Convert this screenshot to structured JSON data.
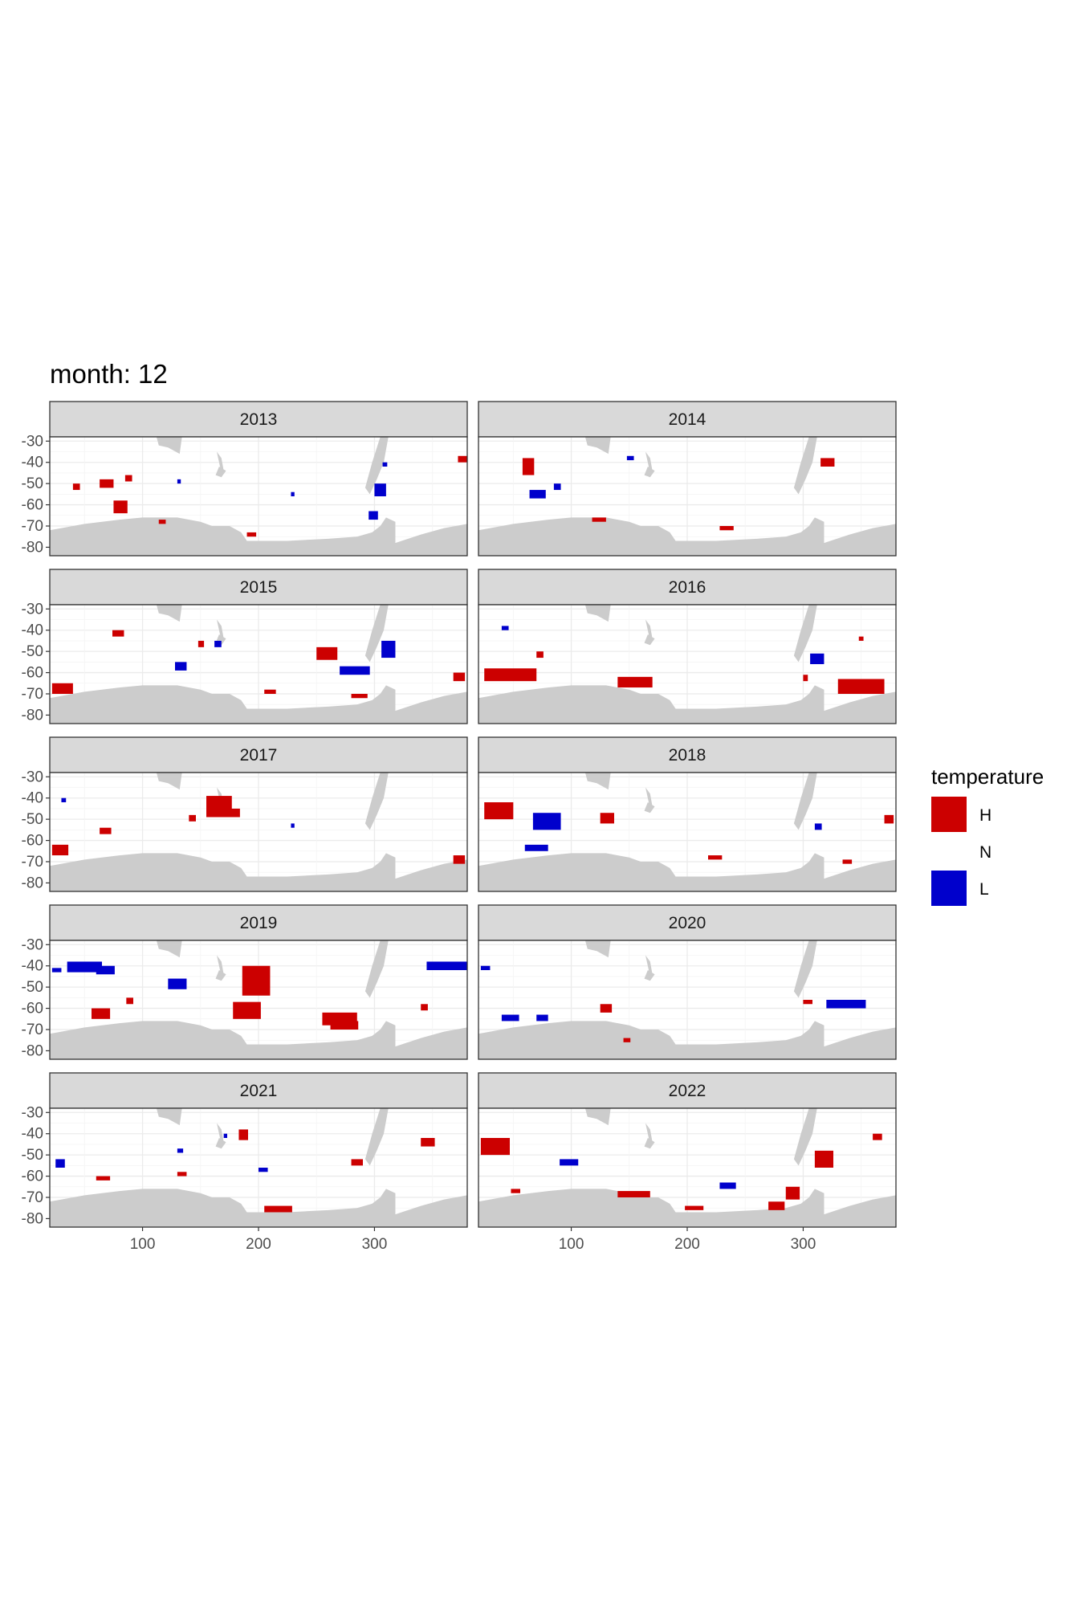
{
  "chart_data": {
    "type": "heatmap",
    "title": "month: 12",
    "xlabel": "",
    "ylabel": "",
    "x_ticks": [
      100,
      200,
      300
    ],
    "y_ticks": [
      -30,
      -40,
      -50,
      -60,
      -70,
      -80
    ],
    "xlim": [
      20,
      380
    ],
    "ylim": [
      -84,
      -28
    ],
    "grid": true,
    "colors": {
      "H": "#cc0000",
      "N": "#ffffff",
      "L": "#0000cc",
      "land": "#cccccc"
    },
    "legend": {
      "title": "temperature",
      "position": "right",
      "entries": [
        {
          "key": "H",
          "label": "H",
          "color": "#cc0000"
        },
        {
          "key": "N",
          "label": "N",
          "color": "#ffffff"
        },
        {
          "key": "L",
          "label": "L",
          "color": "#0000cc"
        }
      ]
    },
    "land": [
      [
        [
          20,
          -72
        ],
        [
          50,
          -69
        ],
        [
          80,
          -67
        ],
        [
          100,
          -66
        ],
        [
          130,
          -66
        ],
        [
          150,
          -68
        ],
        [
          160,
          -70
        ],
        [
          175,
          -70
        ],
        [
          185,
          -73
        ],
        [
          190,
          -77
        ],
        [
          225,
          -77
        ],
        [
          260,
          -76
        ],
        [
          285,
          -75
        ],
        [
          298,
          -73
        ],
        [
          305,
          -70
        ],
        [
          310,
          -66
        ],
        [
          318,
          -68
        ],
        [
          318,
          -78
        ],
        [
          340,
          -74
        ],
        [
          360,
          -71
        ],
        [
          380,
          -69
        ],
        [
          380,
          -84
        ],
        [
          20,
          -84
        ]
      ],
      [
        [
          112,
          -28
        ],
        [
          134,
          -28
        ],
        [
          132,
          -36
        ],
        [
          122,
          -33
        ],
        [
          114,
          -32
        ]
      ],
      [
        [
          164,
          -35
        ],
        [
          166,
          -40
        ],
        [
          168,
          -45
        ],
        [
          170,
          -44
        ],
        [
          168,
          -38
        ]
      ],
      [
        [
          172,
          -44
        ],
        [
          168,
          -47
        ],
        [
          163,
          -46
        ],
        [
          166,
          -42
        ]
      ],
      [
        [
          305,
          -28
        ],
        [
          312,
          -28
        ],
        [
          308,
          -40
        ],
        [
          302,
          -48
        ],
        [
          296,
          -55
        ],
        [
          292,
          -52
        ],
        [
          298,
          -40
        ]
      ]
    ],
    "panels": [
      {
        "label": "2013",
        "H": [
          [
            40,
            -50,
            6,
            3
          ],
          [
            63,
            -48,
            12,
            4
          ],
          [
            75,
            -58,
            12,
            6
          ],
          [
            85,
            -46,
            6,
            3
          ],
          [
            372,
            -37,
            8,
            3
          ],
          [
            114,
            -67,
            6,
            2
          ],
          [
            190,
            -73,
            8,
            2
          ]
        ],
        "L": [
          [
            300,
            -50,
            10,
            6
          ],
          [
            295,
            -63,
            8,
            4
          ],
          [
            307,
            -40,
            4,
            2
          ],
          [
            228,
            -54,
            3,
            2
          ],
          [
            130,
            -48,
            3,
            2
          ]
        ]
      },
      {
        "label": "2014",
        "H": [
          [
            58,
            -38,
            10,
            8
          ],
          [
            315,
            -38,
            12,
            4
          ],
          [
            118,
            -66,
            12,
            2
          ],
          [
            228,
            -70,
            12,
            2
          ]
        ],
        "L": [
          [
            64,
            -53,
            14,
            4
          ],
          [
            85,
            -50,
            6,
            3
          ],
          [
            148,
            -37,
            6,
            2
          ]
        ]
      },
      {
        "label": "2015",
        "H": [
          [
            250,
            -48,
            18,
            6
          ],
          [
            22,
            -65,
            18,
            5
          ],
          [
            74,
            -40,
            10,
            3
          ],
          [
            148,
            -45,
            5,
            3
          ],
          [
            368,
            -60,
            10,
            4
          ],
          [
            205,
            -68,
            10,
            2
          ],
          [
            280,
            -70,
            14,
            2
          ]
        ],
        "L": [
          [
            270,
            -57,
            26,
            4
          ],
          [
            306,
            -45,
            12,
            8
          ],
          [
            128,
            -55,
            10,
            4
          ],
          [
            162,
            -45,
            6,
            3
          ]
        ]
      },
      {
        "label": "2016",
        "H": [
          [
            25,
            -58,
            45,
            6
          ],
          [
            140,
            -62,
            30,
            5
          ],
          [
            330,
            -63,
            40,
            7
          ],
          [
            70,
            -50,
            6,
            3
          ],
          [
            348,
            -43,
            4,
            2
          ],
          [
            300,
            -61,
            4,
            3
          ]
        ],
        "L": [
          [
            306,
            -51,
            12,
            5
          ],
          [
            40,
            -38,
            6,
            2
          ]
        ]
      },
      {
        "label": "2017",
        "H": [
          [
            155,
            -39,
            22,
            10
          ],
          [
            172,
            -45,
            12,
            4
          ],
          [
            22,
            -62,
            14,
            5
          ],
          [
            368,
            -67,
            10,
            4
          ],
          [
            63,
            -54,
            10,
            3
          ],
          [
            140,
            -48,
            6,
            3
          ]
        ],
        "L": [
          [
            30,
            -40,
            4,
            2
          ],
          [
            228,
            -52,
            3,
            2
          ]
        ]
      },
      {
        "label": "2018",
        "H": [
          [
            25,
            -42,
            25,
            8
          ],
          [
            125,
            -47,
            12,
            5
          ],
          [
            218,
            -67,
            12,
            2
          ],
          [
            334,
            -69,
            8,
            2
          ],
          [
            370,
            -48,
            8,
            4
          ]
        ],
        "L": [
          [
            67,
            -47,
            24,
            8
          ],
          [
            60,
            -62,
            20,
            3
          ],
          [
            310,
            -52,
            6,
            3
          ]
        ]
      },
      {
        "label": "2019",
        "H": [
          [
            186,
            -40,
            24,
            14
          ],
          [
            178,
            -57,
            24,
            8
          ],
          [
            255,
            -62,
            30,
            6
          ],
          [
            262,
            -66,
            24,
            4
          ],
          [
            56,
            -60,
            16,
            5
          ],
          [
            86,
            -55,
            6,
            3
          ],
          [
            340,
            -58,
            6,
            3
          ]
        ],
        "L": [
          [
            35,
            -38,
            30,
            5
          ],
          [
            60,
            -40,
            16,
            4
          ],
          [
            122,
            -46,
            16,
            5
          ],
          [
            345,
            -38,
            35,
            4
          ],
          [
            22,
            -41,
            8,
            2
          ]
        ]
      },
      {
        "label": "2020",
        "H": [
          [
            125,
            -58,
            10,
            4
          ],
          [
            145,
            -74,
            6,
            2
          ],
          [
            300,
            -56,
            8,
            2
          ]
        ],
        "L": [
          [
            320,
            -56,
            34,
            4
          ],
          [
            40,
            -63,
            15,
            3
          ],
          [
            70,
            -63,
            10,
            3
          ],
          [
            22,
            -40,
            8,
            2
          ]
        ]
      },
      {
        "label": "2021",
        "H": [
          [
            205,
            -74,
            24,
            3
          ],
          [
            183,
            -38,
            8,
            5
          ],
          [
            340,
            -42,
            12,
            4
          ],
          [
            60,
            -60,
            12,
            2
          ],
          [
            130,
            -58,
            8,
            2
          ],
          [
            280,
            -52,
            10,
            3
          ]
        ],
        "L": [
          [
            25,
            -52,
            8,
            4
          ],
          [
            130,
            -47,
            5,
            2
          ],
          [
            200,
            -56,
            8,
            2
          ],
          [
            170,
            -40,
            3,
            2
          ]
        ]
      },
      {
        "label": "2022",
        "H": [
          [
            22,
            -42,
            25,
            8
          ],
          [
            310,
            -48,
            16,
            8
          ],
          [
            270,
            -72,
            14,
            4
          ],
          [
            285,
            -65,
            12,
            6
          ],
          [
            198,
            -74,
            16,
            2
          ],
          [
            140,
            -67,
            28,
            3
          ],
          [
            360,
            -40,
            8,
            3
          ],
          [
            48,
            -66,
            8,
            2
          ]
        ],
        "L": [
          [
            228,
            -63,
            14,
            3
          ],
          [
            90,
            -52,
            16,
            3
          ]
        ]
      }
    ]
  }
}
